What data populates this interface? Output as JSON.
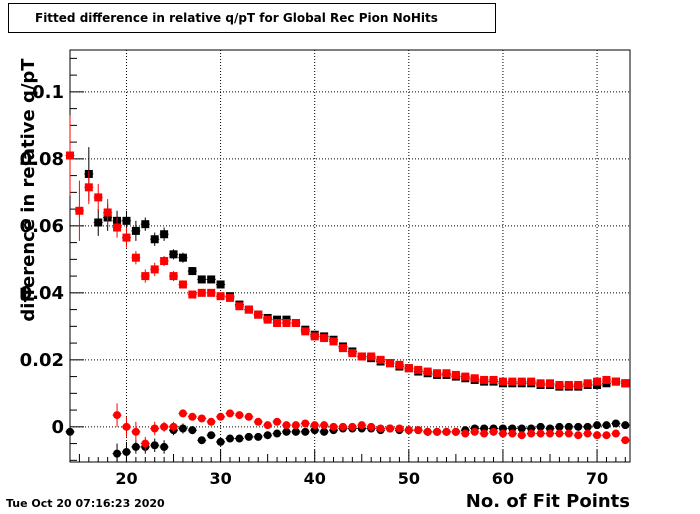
{
  "title": "Fitted difference in relative q/pT for Global Rec Pion NoHits",
  "footer": "Tue Oct 20 07:16:23 2020",
  "chart_data": {
    "type": "scatter",
    "title": "Fitted difference in relative q/pT for Global Rec Pion NoHits",
    "xlabel": "No. of Fit Points",
    "ylabel": "difference in relative q/pT",
    "xlim": [
      14,
      73.5
    ],
    "ylim": [
      -0.0105,
      0.1125
    ],
    "xticks": [
      20,
      30,
      40,
      50,
      60,
      70
    ],
    "yticks": [
      0,
      0.02,
      0.04,
      0.06,
      0.08,
      0.1
    ],
    "ytick_labels": [
      "0",
      "0.02",
      "0.04",
      "0.06",
      "0.08",
      "0.1"
    ],
    "grid": true,
    "series": [
      {
        "marker": "square",
        "color": "#000000",
        "x": [
          16,
          17,
          18,
          19,
          20,
          21,
          22,
          23,
          24,
          25,
          26,
          27,
          28,
          29,
          30,
          31,
          32,
          33,
          34,
          35,
          36,
          37,
          38,
          39,
          40,
          41,
          42,
          43,
          44,
          45,
          46,
          47,
          48,
          49,
          50,
          51,
          52,
          53,
          54,
          55,
          56,
          57,
          58,
          59,
          60,
          61,
          62,
          63,
          64,
          65,
          66,
          67,
          68,
          69,
          70,
          71,
          72,
          73
        ],
        "y": [
          0.0755,
          0.061,
          0.0625,
          0.0615,
          0.0615,
          0.0585,
          0.0605,
          0.056,
          0.0575,
          0.0515,
          0.0505,
          0.0465,
          0.044,
          0.044,
          0.0425,
          0.039,
          0.0365,
          0.035,
          0.0335,
          0.0325,
          0.032,
          0.032,
          0.031,
          0.029,
          0.0275,
          0.027,
          0.026,
          0.024,
          0.0225,
          0.021,
          0.0205,
          0.0195,
          0.019,
          0.018,
          0.0175,
          0.0165,
          0.016,
          0.0155,
          0.0155,
          0.015,
          0.0145,
          0.014,
          0.0135,
          0.0135,
          0.013,
          0.013,
          0.013,
          0.013,
          0.0125,
          0.0125,
          0.012,
          0.012,
          0.012,
          0.0125,
          0.0125,
          0.013,
          0.0135,
          0.013
        ],
        "err": [
          0.008,
          0.004,
          0.004,
          0.003,
          0.003,
          0.003,
          0.002,
          0.002,
          0.002,
          0.0015,
          0.0015,
          0.0012,
          0.001,
          0.001,
          0.001,
          0.001,
          0.0008,
          0.0008,
          0.0008,
          0.0008,
          0.0007,
          0.0007,
          0.0007,
          0.0006,
          0.0006,
          0.0006,
          0.0006,
          0.0006,
          0.0005,
          0.0005,
          0.0005,
          0.0005,
          0.0005,
          0.0005,
          0.0005,
          0.0005,
          0.0005,
          0.0005,
          0.0005,
          0.0005,
          0.0005,
          0.0005,
          0.0005,
          0.0005,
          0.0005,
          0.0005,
          0.0005,
          0.0005,
          0.0005,
          0.0005,
          0.0005,
          0.0005,
          0.0005,
          0.0005,
          0.0005,
          0.0005,
          0.0005,
          0.0005
        ]
      },
      {
        "marker": "square",
        "color": "#ff0000",
        "x": [
          14,
          15,
          16,
          17,
          18,
          19,
          20,
          21,
          22,
          23,
          24,
          25,
          26,
          27,
          28,
          29,
          30,
          31,
          32,
          33,
          34,
          35,
          36,
          37,
          38,
          39,
          40,
          41,
          42,
          43,
          44,
          45,
          46,
          47,
          48,
          49,
          50,
          51,
          52,
          53,
          54,
          55,
          56,
          57,
          58,
          59,
          60,
          61,
          62,
          63,
          64,
          65,
          66,
          67,
          68,
          69,
          70,
          71,
          72,
          73
        ],
        "y": [
          0.081,
          0.0645,
          0.0715,
          0.0685,
          0.064,
          0.0595,
          0.0565,
          0.0505,
          0.045,
          0.047,
          0.0495,
          0.045,
          0.0425,
          0.0395,
          0.04,
          0.04,
          0.039,
          0.0385,
          0.036,
          0.035,
          0.0335,
          0.032,
          0.031,
          0.031,
          0.031,
          0.0285,
          0.027,
          0.0265,
          0.0255,
          0.0235,
          0.022,
          0.021,
          0.021,
          0.02,
          0.019,
          0.0185,
          0.0175,
          0.017,
          0.0165,
          0.016,
          0.016,
          0.0155,
          0.015,
          0.0145,
          0.014,
          0.014,
          0.0135,
          0.0135,
          0.0135,
          0.0135,
          0.013,
          0.013,
          0.0125,
          0.0125,
          0.0125,
          0.013,
          0.0135,
          0.014,
          0.0135,
          0.013
        ],
        "err": [
          0.012,
          0.009,
          0.005,
          0.004,
          0.004,
          0.003,
          0.003,
          0.002,
          0.002,
          0.002,
          0.0015,
          0.0015,
          0.0012,
          0.001,
          0.001,
          0.001,
          0.001,
          0.001,
          0.0008,
          0.0008,
          0.0008,
          0.0008,
          0.0007,
          0.0007,
          0.0007,
          0.0006,
          0.0006,
          0.0006,
          0.0006,
          0.0006,
          0.0005,
          0.0005,
          0.0005,
          0.0005,
          0.0005,
          0.0005,
          0.0005,
          0.0005,
          0.0005,
          0.0005,
          0.0005,
          0.0005,
          0.0005,
          0.0005,
          0.0005,
          0.0005,
          0.0005,
          0.0005,
          0.0005,
          0.0005,
          0.0005,
          0.0005,
          0.0005,
          0.0005,
          0.0005,
          0.0005,
          0.0005,
          0.0005,
          0.0005,
          0.0005
        ]
      },
      {
        "marker": "circle",
        "color": "#000000",
        "x": [
          14,
          19,
          20,
          21,
          22,
          23,
          24,
          25,
          26,
          27,
          28,
          29,
          30,
          31,
          32,
          33,
          34,
          35,
          36,
          37,
          38,
          39,
          40,
          41,
          42,
          43,
          44,
          45,
          46,
          47,
          48,
          49,
          50,
          51,
          52,
          53,
          54,
          55,
          56,
          57,
          58,
          59,
          60,
          61,
          62,
          63,
          64,
          65,
          66,
          67,
          68,
          69,
          70,
          71,
          72,
          73
        ],
        "y": [
          -0.0015,
          -0.008,
          -0.0075,
          -0.006,
          -0.006,
          -0.0055,
          -0.006,
          -0.001,
          -0.0005,
          -0.001,
          -0.004,
          -0.0025,
          -0.0045,
          -0.0035,
          -0.0035,
          -0.003,
          -0.003,
          -0.0025,
          -0.002,
          -0.0015,
          -0.0015,
          -0.0015,
          -0.001,
          -0.0015,
          -0.001,
          -0.0005,
          -0.0005,
          -0.0005,
          -0.0005,
          -0.001,
          -0.0005,
          -0.001,
          -0.001,
          -0.001,
          -0.0015,
          -0.0015,
          -0.0015,
          -0.0015,
          -0.001,
          -0.0005,
          -0.0005,
          -0.0005,
          -0.0005,
          -0.0005,
          -0.0005,
          -0.0005,
          0,
          -0.0005,
          0,
          0,
          0,
          0,
          0.0005,
          0.0005,
          0.001,
          0.0005
        ],
        "err": [
          0.018,
          0.003,
          0.003,
          0.002,
          0.002,
          0.002,
          0.002,
          0.0015,
          0.0015,
          0.0012,
          0.001,
          0.001,
          0.001,
          0.001,
          0.0008,
          0.0008,
          0.0008,
          0.0008,
          0.0007,
          0.0007,
          0.0007,
          0.0006,
          0.0006,
          0.0006,
          0.0006,
          0.0006,
          0.0005,
          0.0005,
          0.0005,
          0.0005,
          0.0005,
          0.0005,
          0.0005,
          0.0005,
          0.0005,
          0.0005,
          0.0005,
          0.0005,
          0.0005,
          0.0005,
          0.0005,
          0.0005,
          0.0005,
          0.0005,
          0.0005,
          0.0005,
          0.0005,
          0.0005,
          0.0005,
          0.0005,
          0.0005,
          0.0005,
          0.0005,
          0.0005,
          0.0005,
          0.0005
        ]
      },
      {
        "marker": "circle",
        "color": "#ff0000",
        "x": [
          19,
          20,
          21,
          22,
          23,
          24,
          25,
          26,
          27,
          28,
          29,
          30,
          31,
          32,
          33,
          34,
          35,
          36,
          37,
          38,
          39,
          40,
          41,
          42,
          43,
          44,
          45,
          46,
          47,
          48,
          49,
          50,
          51,
          52,
          53,
          54,
          55,
          56,
          57,
          58,
          59,
          60,
          61,
          62,
          63,
          64,
          65,
          66,
          67,
          68,
          69,
          70,
          71,
          72,
          73
        ],
        "y": [
          0.0035,
          0,
          -0.0015,
          -0.005,
          -0.0005,
          0,
          0,
          0.004,
          0.003,
          0.0025,
          0.0015,
          0.003,
          0.004,
          0.0035,
          0.003,
          0.0015,
          0.0005,
          0.0015,
          0.0005,
          0.0005,
          0.001,
          0.0005,
          0.0005,
          0,
          0,
          0,
          0.0005,
          0,
          -0.0005,
          -0.0005,
          -0.0005,
          -0.001,
          -0.001,
          -0.0015,
          -0.0015,
          -0.0015,
          -0.0015,
          -0.002,
          -0.0015,
          -0.002,
          -0.0015,
          -0.002,
          -0.002,
          -0.0025,
          -0.002,
          -0.002,
          -0.002,
          -0.002,
          -0.002,
          -0.0025,
          -0.002,
          -0.0025,
          -0.0025,
          -0.002,
          -0.004
        ],
        "err": [
          0.0035,
          0.003,
          0.003,
          0.002,
          0.002,
          0.0015,
          0.0015,
          0.0012,
          0.001,
          0.001,
          0.001,
          0.001,
          0.0008,
          0.0008,
          0.0008,
          0.0008,
          0.0007,
          0.0007,
          0.0007,
          0.0006,
          0.0006,
          0.0006,
          0.0006,
          0.0006,
          0.0005,
          0.0005,
          0.0005,
          0.0005,
          0.0005,
          0.0005,
          0.0005,
          0.0005,
          0.0005,
          0.0005,
          0.0005,
          0.0005,
          0.0005,
          0.0005,
          0.0005,
          0.0005,
          0.0005,
          0.0005,
          0.0005,
          0.0005,
          0.0005,
          0.0005,
          0.0005,
          0.0005,
          0.0005,
          0.0005,
          0.0005,
          0.0005,
          0.0005,
          0.0005,
          0.0005
        ]
      }
    ]
  }
}
